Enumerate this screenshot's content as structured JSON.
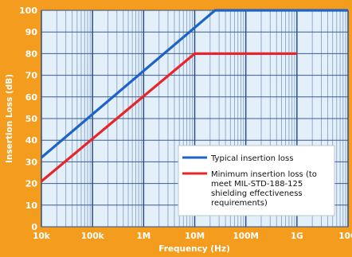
{
  "chart_data": {
    "type": "line",
    "xlabel": "Frequency (Hz)",
    "ylabel": "Insertion Loss (dB)",
    "x_scale": "log",
    "xlim": [
      10000,
      10000000000
    ],
    "ylim": [
      0,
      100
    ],
    "x_ticks": [
      {
        "value": 10000,
        "label": "10k"
      },
      {
        "value": 100000,
        "label": "100k"
      },
      {
        "value": 1000000,
        "label": "1M"
      },
      {
        "value": 10000000,
        "label": "10M"
      },
      {
        "value": 100000000,
        "label": "100M"
      },
      {
        "value": 1000000000,
        "label": "1G"
      },
      {
        "value": 10000000000,
        "label": "10G"
      }
    ],
    "y_ticks": [
      0,
      10,
      20,
      30,
      40,
      50,
      60,
      70,
      80,
      90,
      100
    ],
    "grid": true,
    "legend_position": "bottom-right",
    "series": [
      {
        "name": "Typical insertion loss",
        "color": "#1e64c8",
        "points": [
          [
            10000,
            32
          ],
          [
            25000000,
            100
          ],
          [
            10000000000,
            100
          ]
        ]
      },
      {
        "name": "Minimum insertion loss (to meet MIL-STD-188-125 shielding effectiveness requirements)",
        "legend_lines": [
          "Minimum insertion loss (to",
          "meet MIL-STD-188-125",
          "shielding effectiveness",
          "requirements)"
        ],
        "color": "#e8262a",
        "points": [
          [
            10000,
            21
          ],
          [
            10000000,
            80
          ],
          [
            1000000000,
            80
          ]
        ]
      }
    ]
  }
}
